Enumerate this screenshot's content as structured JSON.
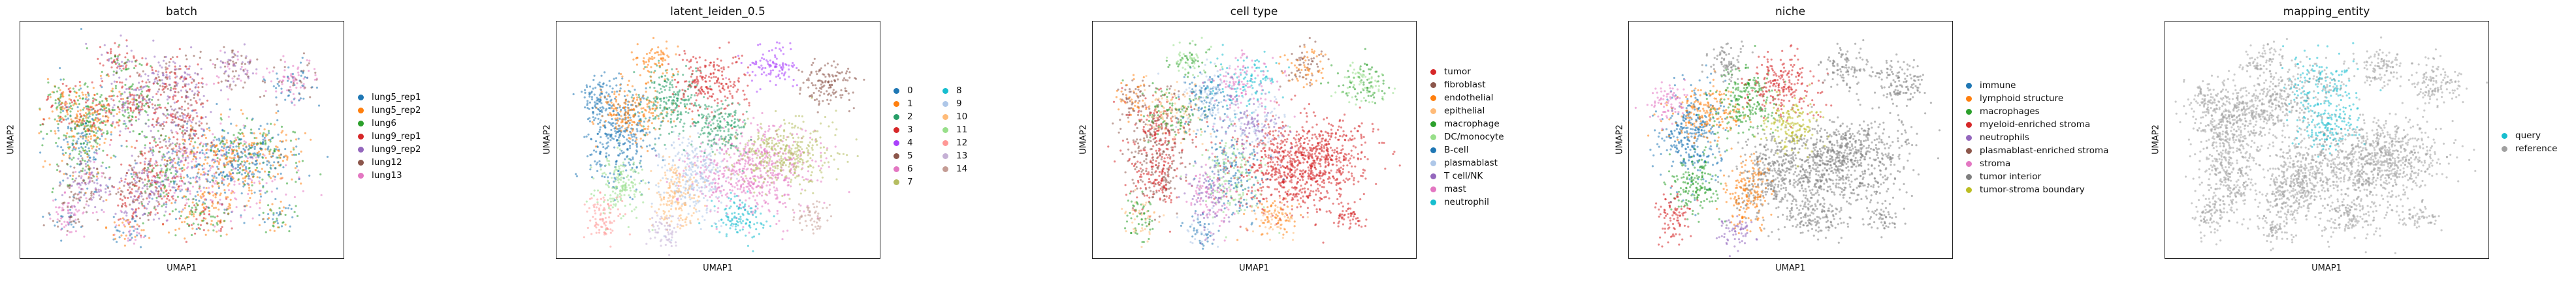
{
  "panels": [
    {
      "title": "batch",
      "xlabel": "UMAP1",
      "ylabel": "UMAP2",
      "legend": [
        {
          "label": "lung5_rep1",
          "color": "#1f77b4"
        },
        {
          "label": "lung5_rep2",
          "color": "#ff7f0e"
        },
        {
          "label": "lung6",
          "color": "#2ca02c"
        },
        {
          "label": "lung9_rep1",
          "color": "#d62728"
        },
        {
          "label": "lung9_rep2",
          "color": "#9467bd"
        },
        {
          "label": "lung12",
          "color": "#8c564b"
        },
        {
          "label": "lung13",
          "color": "#e377c2"
        }
      ]
    },
    {
      "title": "latent_leiden_0.5",
      "xlabel": "UMAP1",
      "ylabel": "UMAP2",
      "legend": [
        {
          "label": "0",
          "color": "#1f77b4"
        },
        {
          "label": "1",
          "color": "#ff7f0e"
        },
        {
          "label": "2",
          "color": "#279e68"
        },
        {
          "label": "3",
          "color": "#d62728"
        },
        {
          "label": "4",
          "color": "#aa40fc"
        },
        {
          "label": "5",
          "color": "#8c564b"
        },
        {
          "label": "6",
          "color": "#e377c2"
        },
        {
          "label": "7",
          "color": "#b5bd61"
        },
        {
          "label": "8",
          "color": "#17becf"
        },
        {
          "label": "9",
          "color": "#aec7e8"
        },
        {
          "label": "10",
          "color": "#ffbb78"
        },
        {
          "label": "11",
          "color": "#98df8a"
        },
        {
          "label": "12",
          "color": "#ff9896"
        },
        {
          "label": "13",
          "color": "#c5b0d5"
        },
        {
          "label": "14",
          "color": "#c49c94"
        }
      ]
    },
    {
      "title": "cell type",
      "xlabel": "UMAP1",
      "ylabel": "UMAP2",
      "legend": [
        {
          "label": "tumor",
          "color": "#d62728"
        },
        {
          "label": "fibroblast",
          "color": "#8c564b"
        },
        {
          "label": "endothelial",
          "color": "#ff7f0e"
        },
        {
          "label": "epithelial",
          "color": "#ffbb78"
        },
        {
          "label": "macrophage",
          "color": "#2ca02c"
        },
        {
          "label": "DC/monocyte",
          "color": "#98df8a"
        },
        {
          "label": "B-cell",
          "color": "#1f77b4"
        },
        {
          "label": "plasmablast",
          "color": "#aec7e8"
        },
        {
          "label": "T cell/NK",
          "color": "#9467bd"
        },
        {
          "label": "mast",
          "color": "#e377c2"
        },
        {
          "label": "neutrophil",
          "color": "#17becf"
        }
      ]
    },
    {
      "title": "niche",
      "xlabel": "UMAP1",
      "ylabel": "UMAP2",
      "legend": [
        {
          "label": "immune",
          "color": "#1f77b4"
        },
        {
          "label": "lymphoid structure",
          "color": "#ff7f0e"
        },
        {
          "label": "macrophages",
          "color": "#2ca02c"
        },
        {
          "label": "myeloid-enriched stroma",
          "color": "#d62728"
        },
        {
          "label": "neutrophils",
          "color": "#9467bd"
        },
        {
          "label": "plasmablast-enriched stroma",
          "color": "#8c564b"
        },
        {
          "label": "stroma",
          "color": "#e377c2"
        },
        {
          "label": "tumor interior",
          "color": "#7f7f7f"
        },
        {
          "label": "tumor-stroma boundary",
          "color": "#bcbd22"
        }
      ]
    },
    {
      "title": "mapping_entity",
      "xlabel": "UMAP1",
      "ylabel": "UMAP2",
      "legend": [
        {
          "label": "query",
          "color": "#17becf"
        },
        {
          "label": "reference",
          "color": "#a0a0a0"
        }
      ]
    }
  ]
}
